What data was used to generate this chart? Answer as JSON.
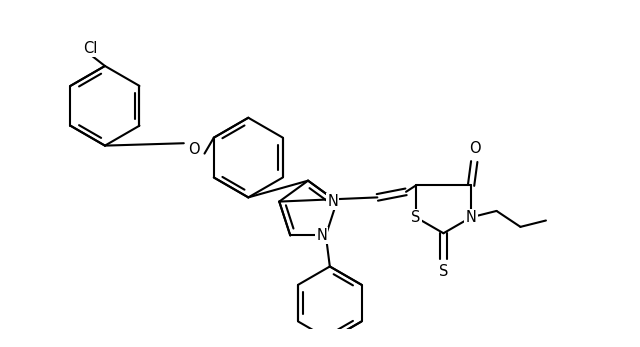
{
  "background_color": "#ffffff",
  "line_color": "#000000",
  "line_width": 1.5,
  "font_size": 10.5,
  "figsize": [
    6.4,
    3.47
  ],
  "dpi": 100,
  "xlim": [
    0.0,
    8.0
  ],
  "ylim": [
    0.3,
    4.2
  ]
}
